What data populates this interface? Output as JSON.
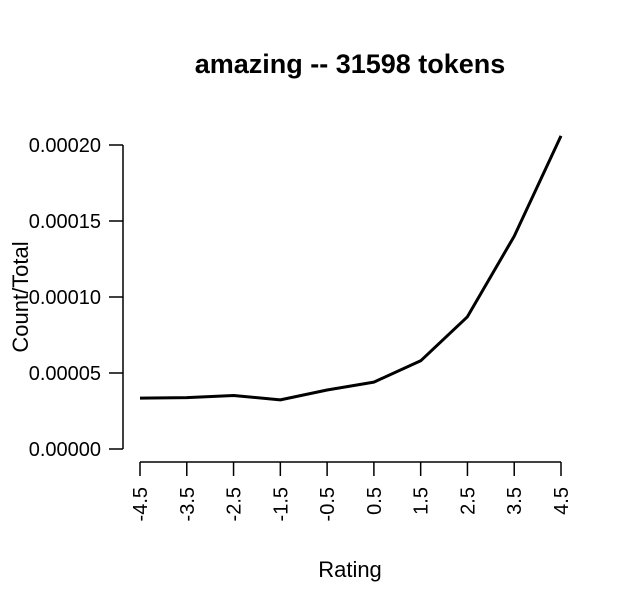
{
  "chart_data": {
    "type": "line",
    "title": "amazing -- 31598 tokens",
    "xlabel": "Rating",
    "ylabel": "Count/Total",
    "x": [
      -4.5,
      -3.5,
      -2.5,
      -1.5,
      -0.5,
      0.5,
      1.5,
      2.5,
      3.5,
      4.5
    ],
    "x_tick_labels": [
      "-4.5",
      "-3.5",
      "-2.5",
      "-1.5",
      "-0.5",
      "0.5",
      "1.5",
      "2.5",
      "3.5",
      "4.5"
    ],
    "values": [
      3.35e-05,
      3.38e-05,
      3.52e-05,
      3.23e-05,
      3.88e-05,
      4.4e-05,
      5.8e-05,
      8.7e-05,
      0.00014,
      0.000206
    ],
    "y_ticks": [
      0,
      5e-05,
      0.0001,
      0.00015,
      0.0002
    ],
    "y_tick_labels": [
      "0.00000",
      "0.00005",
      "0.00010",
      "0.00015",
      "0.00020"
    ],
    "xlim": [
      -4.5,
      4.5
    ],
    "ylim": [
      0,
      0.0002
    ],
    "grid": false,
    "line_color": "#000000"
  }
}
